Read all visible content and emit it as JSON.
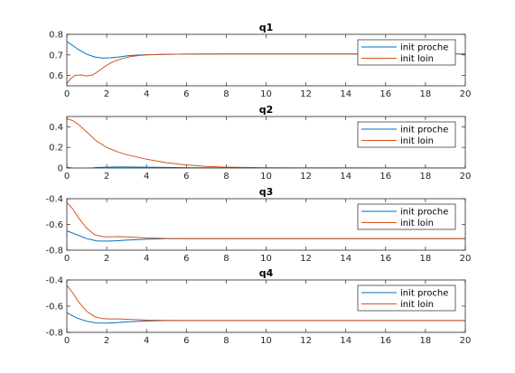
{
  "colors": {
    "init_proche": "#0072BD",
    "init_loin": "#D95319",
    "axes": "#262626",
    "background": "#ffffff"
  },
  "chart_data": [
    {
      "type": "line",
      "title": "q1",
      "xlim": [
        0,
        20
      ],
      "ylim": [
        0.55,
        0.8
      ],
      "xticks": [
        "0",
        "2",
        "4",
        "6",
        "8",
        "10",
        "12",
        "14",
        "16",
        "18",
        "20"
      ],
      "yticks": [
        "0.6",
        "0.7",
        "0.8"
      ],
      "ytick_values": [
        0.6,
        0.7,
        0.8
      ],
      "grid": false,
      "legend_position": "top-right",
      "series": [
        {
          "name": "init proche",
          "x": [
            0,
            0.3,
            0.6,
            1,
            1.4,
            1.8,
            2.2,
            2.6,
            3,
            3.5,
            4,
            5,
            6,
            8,
            10,
            14,
            20
          ],
          "y": [
            0.765,
            0.745,
            0.725,
            0.703,
            0.69,
            0.685,
            0.686,
            0.69,
            0.695,
            0.699,
            0.701,
            0.703,
            0.704,
            0.705,
            0.705,
            0.705,
            0.705
          ]
        },
        {
          "name": "init loin",
          "x": [
            0,
            0.2,
            0.4,
            0.7,
            1,
            1.3,
            1.6,
            2,
            2.4,
            2.8,
            3.2,
            3.6,
            4,
            5,
            6,
            8,
            12,
            20
          ],
          "y": [
            0.562,
            0.585,
            0.6,
            0.603,
            0.598,
            0.603,
            0.622,
            0.65,
            0.67,
            0.683,
            0.692,
            0.697,
            0.7,
            0.703,
            0.704,
            0.705,
            0.705,
            0.705
          ]
        }
      ]
    },
    {
      "type": "line",
      "title": "q2",
      "xlim": [
        0,
        20
      ],
      "ylim": [
        0,
        0.5
      ],
      "xticks": [
        "0",
        "2",
        "4",
        "6",
        "8",
        "10",
        "12",
        "14",
        "16",
        "18",
        "20"
      ],
      "yticks": [
        "0",
        "0.2",
        "0.4"
      ],
      "ytick_values": [
        0,
        0.2,
        0.4
      ],
      "grid": false,
      "legend_position": "top-right",
      "series": [
        {
          "name": "init proche",
          "x": [
            0,
            0.5,
            1,
            1.5,
            2,
            2.5,
            3,
            4,
            5,
            6,
            8,
            10,
            20
          ],
          "y": [
            0.005,
            -0.005,
            -0.004,
            0.004,
            0.008,
            0.01,
            0.01,
            0.008,
            0.005,
            0.003,
            0.001,
            0,
            0
          ]
        },
        {
          "name": "init loin",
          "x": [
            0,
            0.3,
            0.6,
            1,
            1.5,
            2,
            2.5,
            3,
            4,
            5,
            6,
            7,
            8,
            10,
            12,
            20
          ],
          "y": [
            0.48,
            0.46,
            0.42,
            0.35,
            0.26,
            0.2,
            0.16,
            0.13,
            0.085,
            0.05,
            0.03,
            0.015,
            0.008,
            0.003,
            0.001,
            0
          ]
        }
      ]
    },
    {
      "type": "line",
      "title": "q3",
      "xlim": [
        0,
        20
      ],
      "ylim": [
        -0.8,
        -0.4
      ],
      "xticks": [
        "0",
        "2",
        "4",
        "6",
        "8",
        "10",
        "12",
        "14",
        "16",
        "18",
        "20"
      ],
      "yticks": [
        "-0.8",
        "-0.6",
        "-0.4"
      ],
      "ytick_values": [
        -0.8,
        -0.6,
        -0.4
      ],
      "grid": false,
      "legend_position": "top-right",
      "series": [
        {
          "name": "init proche",
          "x": [
            0,
            0.5,
            1,
            1.5,
            2,
            2.5,
            3,
            4,
            5,
            6,
            8,
            20
          ],
          "y": [
            -0.65,
            -0.68,
            -0.71,
            -0.728,
            -0.73,
            -0.727,
            -0.722,
            -0.715,
            -0.711,
            -0.71,
            -0.71,
            -0.71
          ]
        },
        {
          "name": "init loin",
          "x": [
            0,
            0.3,
            0.6,
            1,
            1.4,
            1.8,
            2.2,
            2.6,
            3,
            4,
            5,
            6,
            8,
            20
          ],
          "y": [
            -0.43,
            -0.48,
            -0.55,
            -0.63,
            -0.68,
            -0.695,
            -0.697,
            -0.695,
            -0.697,
            -0.705,
            -0.709,
            -0.71,
            -0.71,
            -0.71
          ]
        }
      ]
    },
    {
      "type": "line",
      "title": "q4",
      "xlim": [
        0,
        20
      ],
      "ylim": [
        -0.8,
        -0.4
      ],
      "xticks": [
        "0",
        "2",
        "4",
        "6",
        "8",
        "10",
        "12",
        "14",
        "16",
        "18",
        "20"
      ],
      "yticks": [
        "-0.8",
        "-0.6",
        "-0.4"
      ],
      "ytick_values": [
        -0.8,
        -0.6,
        -0.4
      ],
      "grid": false,
      "legend_position": "top-right",
      "series": [
        {
          "name": "init proche",
          "x": [
            0,
            0.5,
            1,
            1.5,
            2,
            2.5,
            3,
            4,
            5,
            6,
            8,
            20
          ],
          "y": [
            -0.65,
            -0.69,
            -0.715,
            -0.728,
            -0.73,
            -0.726,
            -0.72,
            -0.713,
            -0.71,
            -0.71,
            -0.71,
            -0.71
          ]
        },
        {
          "name": "init loin",
          "x": [
            0,
            0.3,
            0.6,
            1,
            1.4,
            1.8,
            2.2,
            2.6,
            3,
            4,
            5,
            6,
            8,
            20
          ],
          "y": [
            -0.44,
            -0.5,
            -0.57,
            -0.64,
            -0.68,
            -0.695,
            -0.698,
            -0.697,
            -0.7,
            -0.706,
            -0.709,
            -0.71,
            -0.71,
            -0.71
          ]
        }
      ]
    }
  ]
}
